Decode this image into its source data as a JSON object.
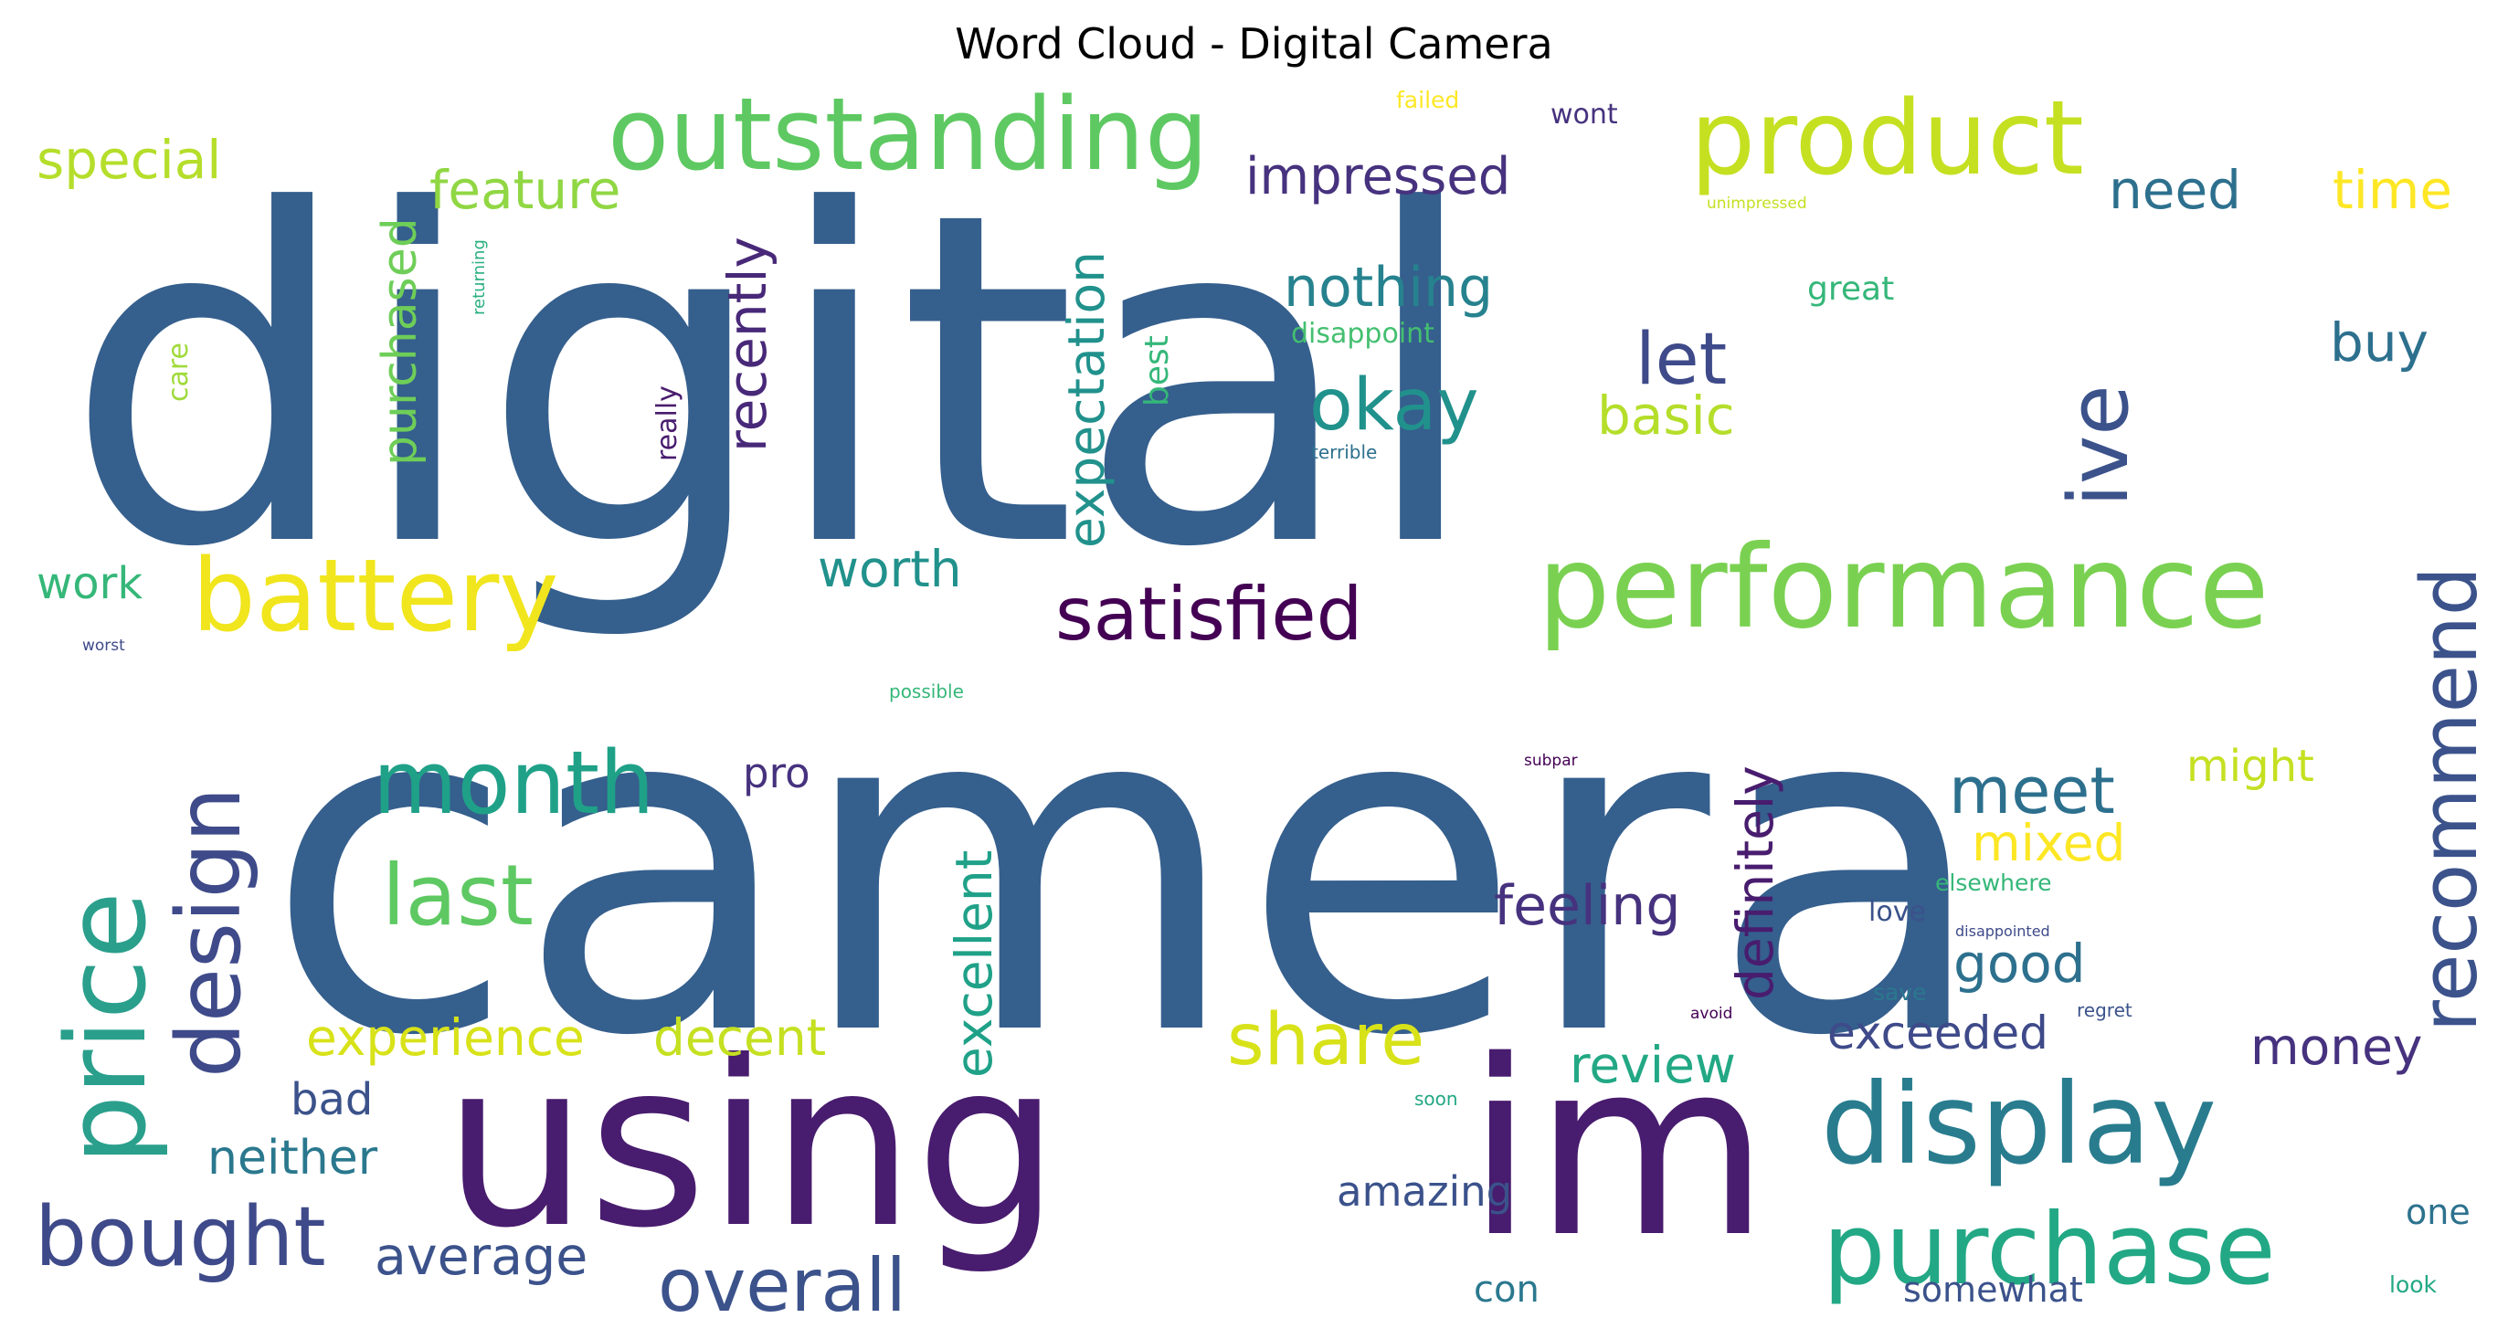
{
  "chart_data": {
    "type": "wordcloud",
    "title": "Word Cloud - Digital Camera",
    "words": [
      {
        "text": "digital",
        "color": "#355f8d"
      },
      {
        "text": "camera",
        "color": "#355f8d"
      },
      {
        "text": "using",
        "color": "#481c6e"
      },
      {
        "text": "im",
        "color": "#481c6e"
      },
      {
        "text": "performance",
        "color": "#7ad151"
      },
      {
        "text": "outstanding",
        "color": "#5ec962"
      },
      {
        "text": "product",
        "color": "#c5e021"
      },
      {
        "text": "battery",
        "color": "#f1e51d"
      },
      {
        "text": "display",
        "color": "#287c8e"
      },
      {
        "text": "purchase",
        "color": "#22a884"
      },
      {
        "text": "satisfied",
        "color": "#440154"
      },
      {
        "text": "price",
        "color": "#2a9f8c"
      },
      {
        "text": "design",
        "color": "#3e4a89"
      },
      {
        "text": "recommend",
        "color": "#3b528b"
      },
      {
        "text": "bought",
        "color": "#3e4a89"
      },
      {
        "text": "overall",
        "color": "#3b528b"
      },
      {
        "text": "month",
        "color": "#1fa188"
      },
      {
        "text": "last",
        "color": "#5ec962"
      },
      {
        "text": "okay",
        "color": "#21918c"
      },
      {
        "text": "ive",
        "color": "#3b528b"
      },
      {
        "text": "let",
        "color": "#3e4a89"
      },
      {
        "text": "share",
        "color": "#d8e219"
      },
      {
        "text": "meet",
        "color": "#2d708e"
      },
      {
        "text": "special",
        "color": "#b5de2b"
      },
      {
        "text": "feature",
        "color": "#90d743"
      },
      {
        "text": "impressed",
        "color": "#46327e"
      },
      {
        "text": "nothing",
        "color": "#26828e"
      },
      {
        "text": "need",
        "color": "#2d708e"
      },
      {
        "text": "time",
        "color": "#fde725"
      },
      {
        "text": "buy",
        "color": "#2d708e"
      },
      {
        "text": "basic",
        "color": "#b5de2b"
      },
      {
        "text": "worth",
        "color": "#21918c"
      },
      {
        "text": "work",
        "color": "#35b779"
      },
      {
        "text": "purchased",
        "color": "#6ece58"
      },
      {
        "text": "recently",
        "color": "#482878"
      },
      {
        "text": "expectation",
        "color": "#21918c"
      },
      {
        "text": "best",
        "color": "#35b779"
      },
      {
        "text": "really",
        "color": "#481c6e"
      },
      {
        "text": "care",
        "color": "#9fda3a"
      },
      {
        "text": "returning",
        "color": "#29af7f"
      },
      {
        "text": "failed",
        "color": "#fde725"
      },
      {
        "text": "wont",
        "color": "#46327e"
      },
      {
        "text": "unimpressed",
        "color": "#c5e021"
      },
      {
        "text": "great",
        "color": "#35b779"
      },
      {
        "text": "disappoint",
        "color": "#44bf70"
      },
      {
        "text": "terrible",
        "color": "#2d708e"
      },
      {
        "text": "worst",
        "color": "#3e4a89"
      },
      {
        "text": "possible",
        "color": "#35b779"
      },
      {
        "text": "subpar",
        "color": "#440154"
      },
      {
        "text": "experience",
        "color": "#d8e219"
      },
      {
        "text": "decent",
        "color": "#c5e021"
      },
      {
        "text": "excellent",
        "color": "#1fa188"
      },
      {
        "text": "feeling",
        "color": "#46327e"
      },
      {
        "text": "definitely",
        "color": "#481c6e"
      },
      {
        "text": "mixed",
        "color": "#fde725"
      },
      {
        "text": "might",
        "color": "#c5e021"
      },
      {
        "text": "good",
        "color": "#2d708e"
      },
      {
        "text": "exceeded",
        "color": "#3e4a89"
      },
      {
        "text": "money",
        "color": "#46327e"
      },
      {
        "text": "review",
        "color": "#22a884"
      },
      {
        "text": "pro",
        "color": "#46327e"
      },
      {
        "text": "bad",
        "color": "#3b528b"
      },
      {
        "text": "neither",
        "color": "#2a788e"
      },
      {
        "text": "average",
        "color": "#3b528b"
      },
      {
        "text": "amazing",
        "color": "#3b528b"
      },
      {
        "text": "con",
        "color": "#2a788e"
      },
      {
        "text": "somewhat",
        "color": "#3b528b"
      },
      {
        "text": "one",
        "color": "#2c728e"
      },
      {
        "text": "look",
        "color": "#22a884"
      },
      {
        "text": "love",
        "color": "#3b528b"
      },
      {
        "text": "elsewhere",
        "color": "#35b779"
      },
      {
        "text": "disappointed",
        "color": "#3e4a89"
      },
      {
        "text": "save",
        "color": "#2a788e"
      },
      {
        "text": "avoid",
        "color": "#440154"
      },
      {
        "text": "regret",
        "color": "#3b528b"
      },
      {
        "text": "soon",
        "color": "#22a884"
      }
    ]
  }
}
